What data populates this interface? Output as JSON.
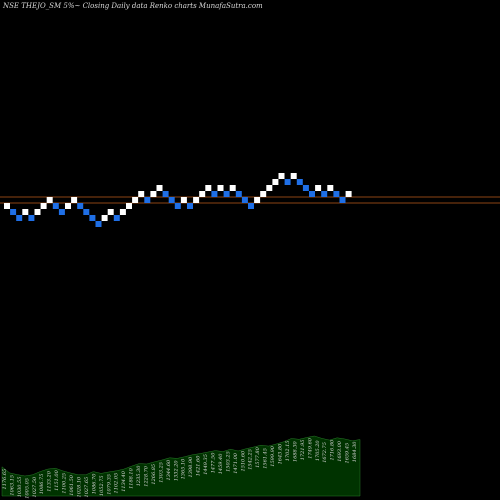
{
  "title": "NSE THEJO_SM 5%~ Closing Daily data Renko charts MunafaSutra.com",
  "colors": {
    "background": "#000000",
    "up_brick": "#ffffff",
    "down_brick": "#1f6fe6",
    "reference_line": "#8b4513",
    "volume_fill": "#003300",
    "volume_stroke": "#2a7a2a",
    "label_text": "#d8d8d8"
  },
  "chart_data": {
    "type": "renko",
    "brick_size_percent": 5,
    "bricks": [
      {
        "level": 0,
        "dir": "up"
      },
      {
        "level": -1,
        "dir": "down"
      },
      {
        "level": -2,
        "dir": "down"
      },
      {
        "level": -1,
        "dir": "up"
      },
      {
        "level": -2,
        "dir": "down"
      },
      {
        "level": -1,
        "dir": "up"
      },
      {
        "level": 0,
        "dir": "up"
      },
      {
        "level": 1,
        "dir": "up"
      },
      {
        "level": 0,
        "dir": "down"
      },
      {
        "level": -1,
        "dir": "down"
      },
      {
        "level": 0,
        "dir": "up"
      },
      {
        "level": 1,
        "dir": "up"
      },
      {
        "level": 0,
        "dir": "down"
      },
      {
        "level": -1,
        "dir": "down"
      },
      {
        "level": -2,
        "dir": "down"
      },
      {
        "level": -3,
        "dir": "down"
      },
      {
        "level": -2,
        "dir": "up"
      },
      {
        "level": -1,
        "dir": "up"
      },
      {
        "level": -2,
        "dir": "down"
      },
      {
        "level": -1,
        "dir": "up"
      },
      {
        "level": 0,
        "dir": "up"
      },
      {
        "level": 1,
        "dir": "up"
      },
      {
        "level": 2,
        "dir": "up"
      },
      {
        "level": 1,
        "dir": "down"
      },
      {
        "level": 2,
        "dir": "up"
      },
      {
        "level": 3,
        "dir": "up"
      },
      {
        "level": 2,
        "dir": "down"
      },
      {
        "level": 1,
        "dir": "down"
      },
      {
        "level": 0,
        "dir": "down"
      },
      {
        "level": 1,
        "dir": "up"
      },
      {
        "level": 0,
        "dir": "down"
      },
      {
        "level": 1,
        "dir": "up"
      },
      {
        "level": 2,
        "dir": "up"
      },
      {
        "level": 3,
        "dir": "up"
      },
      {
        "level": 2,
        "dir": "down"
      },
      {
        "level": 3,
        "dir": "up"
      },
      {
        "level": 2,
        "dir": "down"
      },
      {
        "level": 3,
        "dir": "up"
      },
      {
        "level": 2,
        "dir": "down"
      },
      {
        "level": 1,
        "dir": "down"
      },
      {
        "level": 0,
        "dir": "down"
      },
      {
        "level": 1,
        "dir": "up"
      },
      {
        "level": 2,
        "dir": "up"
      },
      {
        "level": 3,
        "dir": "up"
      },
      {
        "level": 4,
        "dir": "up"
      },
      {
        "level": 5,
        "dir": "up"
      },
      {
        "level": 4,
        "dir": "down"
      },
      {
        "level": 5,
        "dir": "up"
      },
      {
        "level": 4,
        "dir": "down"
      },
      {
        "level": 3,
        "dir": "down"
      },
      {
        "level": 2,
        "dir": "down"
      },
      {
        "level": 3,
        "dir": "up"
      },
      {
        "level": 2,
        "dir": "down"
      },
      {
        "level": 3,
        "dir": "up"
      },
      {
        "level": 2,
        "dir": "down"
      },
      {
        "level": 1,
        "dir": "down"
      },
      {
        "level": 2,
        "dir": "up"
      }
    ],
    "volume_labels": [
      "1176.65",
      "1063.15",
      "1030.55",
      "1005.05",
      "1027.50",
      "1086.75",
      "1133.20",
      "1151.00",
      "1100.25",
      "1061.50",
      "1028.10",
      "1027.65",
      "1086.70",
      "1052.75",
      "1079.35",
      "1102.05",
      "1134.40",
      "1188.10",
      "1235.30",
      "1228.70",
      "1266.85",
      "1303.25",
      "1344.60",
      "1332.20",
      "1365.10",
      "1398.90",
      "1421.60",
      "1449.35",
      "1477.50",
      "1459.40",
      "1503.25",
      "1471.00",
      "1510.60",
      "1542.25",
      "1577.80",
      "1561.45",
      "1599.90",
      "1643.80",
      "1702.15",
      "1688.30",
      "1721.95",
      "1749.60",
      "1705.20",
      "1672.75",
      "1716.80",
      "1693.00",
      "1659.45",
      "1684.30"
    ],
    "reference_levels": [
      2,
      1
    ]
  }
}
